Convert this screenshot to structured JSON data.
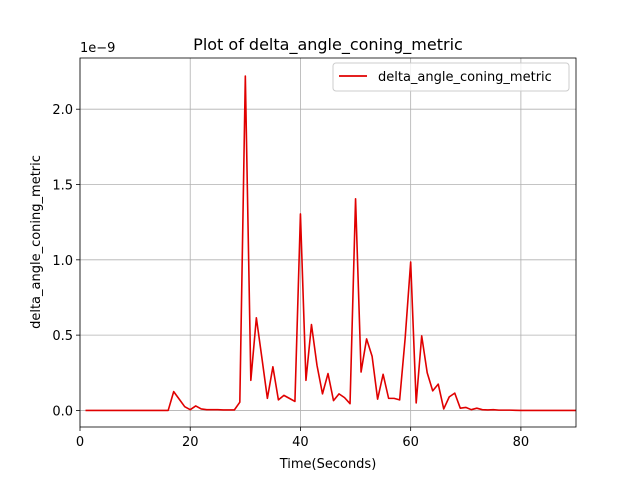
{
  "chart_data": {
    "type": "line",
    "title": "Plot of delta_angle_coning_metric",
    "xlabel": "Time(Seconds)",
    "ylabel": "delta_angle_coning_metric",
    "offset_label": "1e−9",
    "xlim": [
      0,
      90
    ],
    "ylim": [
      -0.11,
      2.34
    ],
    "x_ticks": [
      0,
      20,
      40,
      60,
      80
    ],
    "y_ticks": [
      0.0,
      0.5,
      1.0,
      1.5,
      2.0
    ],
    "x_tick_labels": [
      "0",
      "20",
      "40",
      "60",
      "80"
    ],
    "y_tick_labels": [
      "0.0",
      "0.5",
      "1.0",
      "1.5",
      "2.0"
    ],
    "grid": true,
    "legend_position": "upper right",
    "colors": {
      "line": "#e00000",
      "grid": "#b0b0b0"
    },
    "series": [
      {
        "name": "delta_angle_coning_metric",
        "x": [
          1,
          2,
          3,
          4,
          5,
          6,
          7,
          8,
          9,
          10,
          11,
          12,
          13,
          14,
          15,
          16,
          17,
          18,
          19,
          20,
          21,
          22,
          23,
          24,
          25,
          26,
          27,
          28,
          29,
          30,
          31,
          32,
          33,
          34,
          35,
          36,
          37,
          38,
          39,
          40,
          41,
          42,
          43,
          44,
          45,
          46,
          47,
          48,
          49,
          50,
          51,
          52,
          53,
          54,
          55,
          56,
          57,
          58,
          59,
          60,
          61,
          62,
          63,
          64,
          65,
          66,
          67,
          68,
          69,
          70,
          71,
          72,
          73,
          74,
          75,
          76,
          77,
          78,
          79,
          80,
          81,
          82,
          83,
          84,
          85,
          86,
          87,
          88,
          89,
          90
        ],
        "y": [
          0.0,
          0.0,
          0.0,
          0.0,
          0.0,
          0.0,
          0.0,
          0.0,
          0.0,
          0.0,
          0.0,
          0.0,
          0.0,
          0.0,
          0.0,
          0.0,
          0.125,
          0.075,
          0.025,
          0.005,
          0.03,
          0.01,
          0.005,
          0.005,
          0.005,
          0.003,
          0.003,
          0.003,
          0.055,
          2.22,
          0.2,
          0.615,
          0.35,
          0.08,
          0.29,
          0.07,
          0.1,
          0.08,
          0.06,
          1.305,
          0.2,
          0.57,
          0.3,
          0.11,
          0.245,
          0.065,
          0.11,
          0.085,
          0.045,
          1.405,
          0.255,
          0.475,
          0.36,
          0.075,
          0.24,
          0.08,
          0.08,
          0.07,
          0.48,
          0.985,
          0.05,
          0.495,
          0.25,
          0.13,
          0.175,
          0.01,
          0.09,
          0.115,
          0.015,
          0.02,
          0.005,
          0.015,
          0.005,
          0.003,
          0.005,
          0.002,
          0.002,
          0.002,
          0.001,
          0.0,
          0.0,
          0.0,
          0.0,
          0.0,
          0.0,
          0.0,
          0.0,
          0.0,
          0.0,
          0.0
        ]
      }
    ]
  }
}
